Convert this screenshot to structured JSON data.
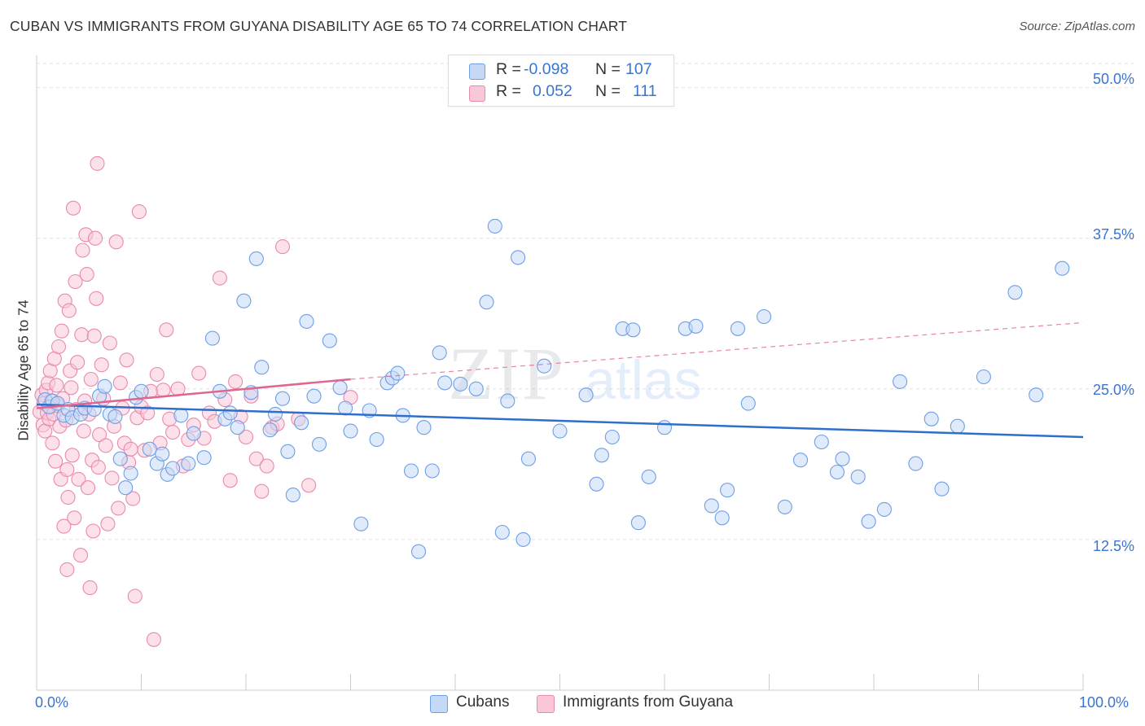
{
  "title": "CUBAN VS IMMIGRANTS FROM GUYANA DISABILITY AGE 65 TO 74 CORRELATION CHART",
  "source": "Source: ZipAtlas.com",
  "watermark": {
    "zip": "ZIP",
    "atlas": "atlas"
  },
  "legend": {
    "r_label": "R =",
    "n_label": "N =",
    "series": [
      {
        "name": "Cubans",
        "r": "-0.098",
        "n": "107",
        "fill": "#c5d9f6",
        "stroke": "#6e9ee6"
      },
      {
        "name": "Immigrants from Guyana",
        "r": "0.052",
        "n": "111",
        "fill": "#f9c8d8",
        "stroke": "#e88aac"
      }
    ]
  },
  "chart_data": {
    "type": "scatter",
    "title": "CUBAN VS IMMIGRANTS FROM GUYANA DISABILITY AGE 65 TO 74 CORRELATION CHART",
    "xlabel": "",
    "ylabel": "Disability Age 65 to 74",
    "xlim": [
      0,
      100
    ],
    "ylim": [
      0,
      52
    ],
    "x_tick_labels": [
      "0.0%",
      "100.0%"
    ],
    "y_ticks": [
      12.5,
      25.0,
      37.5,
      50.0
    ],
    "y_tick_labels": [
      "12.5%",
      "25.0%",
      "37.5%",
      "50.0%"
    ],
    "grid": true,
    "series": [
      {
        "name": "Cubans",
        "color": "#6e9ee6",
        "fill": "#c5d9f6",
        "trend": {
          "x": [
            0,
            100
          ],
          "y": [
            23.7,
            21.0
          ],
          "color": "#2f6fcc",
          "dashed_extension": false
        },
        "points": [
          [
            0.8,
            24.1
          ],
          [
            1.2,
            23.5
          ],
          [
            1.5,
            24.0
          ],
          [
            2.0,
            23.8
          ],
          [
            2.6,
            22.8
          ],
          [
            3.0,
            23.3
          ],
          [
            3.4,
            22.6
          ],
          [
            4.2,
            22.9
          ],
          [
            4.6,
            23.4
          ],
          [
            5.5,
            23.3
          ],
          [
            6.0,
            24.4
          ],
          [
            6.5,
            25.2
          ],
          [
            7.0,
            22.9
          ],
          [
            7.5,
            22.7
          ],
          [
            8.0,
            19.2
          ],
          [
            8.5,
            16.8
          ],
          [
            9.0,
            18.0
          ],
          [
            9.5,
            24.3
          ],
          [
            10.0,
            24.8
          ],
          [
            10.8,
            20.0
          ],
          [
            11.5,
            18.8
          ],
          [
            12.0,
            19.6
          ],
          [
            12.5,
            17.9
          ],
          [
            13.0,
            18.4
          ],
          [
            13.8,
            22.8
          ],
          [
            14.5,
            18.8
          ],
          [
            15.0,
            21.3
          ],
          [
            16.0,
            19.3
          ],
          [
            16.8,
            29.2
          ],
          [
            17.5,
            24.8
          ],
          [
            18.0,
            22.5
          ],
          [
            18.5,
            23.0
          ],
          [
            19.2,
            21.8
          ],
          [
            19.8,
            32.3
          ],
          [
            20.5,
            24.7
          ],
          [
            21.0,
            35.8
          ],
          [
            21.5,
            26.8
          ],
          [
            22.3,
            21.6
          ],
          [
            22.8,
            22.9
          ],
          [
            23.5,
            24.2
          ],
          [
            24.0,
            19.8
          ],
          [
            24.5,
            16.2
          ],
          [
            25.3,
            22.2
          ],
          [
            25.8,
            30.6
          ],
          [
            26.5,
            24.4
          ],
          [
            27.0,
            20.4
          ],
          [
            28.0,
            29.0
          ],
          [
            29.0,
            25.1
          ],
          [
            29.5,
            23.4
          ],
          [
            30.0,
            21.5
          ],
          [
            31.0,
            13.8
          ],
          [
            31.8,
            23.2
          ],
          [
            32.5,
            20.8
          ],
          [
            33.5,
            25.5
          ],
          [
            34.0,
            25.9
          ],
          [
            34.5,
            26.3
          ],
          [
            35.0,
            22.8
          ],
          [
            35.8,
            18.2
          ],
          [
            36.5,
            11.5
          ],
          [
            37.0,
            21.8
          ],
          [
            37.8,
            18.2
          ],
          [
            38.5,
            28.0
          ],
          [
            39.0,
            25.5
          ],
          [
            40.5,
            25.4
          ],
          [
            42.0,
            25.0
          ],
          [
            43.0,
            32.2
          ],
          [
            43.8,
            38.5
          ],
          [
            44.5,
            13.1
          ],
          [
            45.0,
            24.0
          ],
          [
            46.0,
            35.9
          ],
          [
            46.5,
            12.5
          ],
          [
            47.0,
            19.2
          ],
          [
            48.5,
            26.9
          ],
          [
            50.0,
            21.5
          ],
          [
            52.5,
            24.5
          ],
          [
            53.5,
            17.1
          ],
          [
            54.0,
            19.5
          ],
          [
            55.0,
            21.0
          ],
          [
            56.0,
            30.0
          ],
          [
            57.0,
            29.9
          ],
          [
            57.5,
            13.9
          ],
          [
            58.5,
            17.7
          ],
          [
            60.0,
            21.8
          ],
          [
            62.0,
            30.0
          ],
          [
            63.0,
            30.2
          ],
          [
            64.5,
            15.3
          ],
          [
            65.5,
            14.3
          ],
          [
            66.0,
            16.6
          ],
          [
            67.0,
            30.0
          ],
          [
            68.0,
            23.8
          ],
          [
            69.5,
            31.0
          ],
          [
            71.5,
            15.2
          ],
          [
            73.0,
            19.1
          ],
          [
            75.0,
            20.6
          ],
          [
            76.5,
            18.1
          ],
          [
            77.0,
            19.2
          ],
          [
            78.5,
            17.7
          ],
          [
            79.5,
            14.0
          ],
          [
            81.0,
            15.0
          ],
          [
            82.5,
            25.6
          ],
          [
            84.0,
            18.8
          ],
          [
            85.5,
            22.5
          ],
          [
            86.5,
            16.7
          ],
          [
            88.0,
            21.9
          ],
          [
            90.5,
            26.0
          ],
          [
            93.5,
            33.0
          ],
          [
            95.5,
            24.5
          ],
          [
            98.0,
            35.0
          ]
        ]
      },
      {
        "name": "Immigrants from Guyana",
        "color": "#e88aac",
        "fill": "#f9c8d8",
        "trend": {
          "x": [
            0,
            30
          ],
          "y": [
            23.4,
            25.8
          ],
          "color": "#e0668f",
          "dashed_extension": true,
          "dashed_to": [
            100,
            30.5
          ]
        },
        "points": [
          [
            0.3,
            23.1
          ],
          [
            0.5,
            24.5
          ],
          [
            0.6,
            22.0
          ],
          [
            0.7,
            23.8
          ],
          [
            0.8,
            21.5
          ],
          [
            0.9,
            24.9
          ],
          [
            1.0,
            23.0
          ],
          [
            1.1,
            25.5
          ],
          [
            1.2,
            22.5
          ],
          [
            1.3,
            26.5
          ],
          [
            1.4,
            24.0
          ],
          [
            1.5,
            20.5
          ],
          [
            1.6,
            22.9
          ],
          [
            1.7,
            27.5
          ],
          [
            1.8,
            19.0
          ],
          [
            1.9,
            25.3
          ],
          [
            2.0,
            23.6
          ],
          [
            2.1,
            28.5
          ],
          [
            2.2,
            21.9
          ],
          [
            2.3,
            17.5
          ],
          [
            2.4,
            29.8
          ],
          [
            2.5,
            24.2
          ],
          [
            2.6,
            13.6
          ],
          [
            2.7,
            32.3
          ],
          [
            2.8,
            22.4
          ],
          [
            2.9,
            18.3
          ],
          [
            3.0,
            16.0
          ],
          [
            3.1,
            31.5
          ],
          [
            3.2,
            26.5
          ],
          [
            3.3,
            25.1
          ],
          [
            3.4,
            19.5
          ],
          [
            3.5,
            40.0
          ],
          [
            3.6,
            14.3
          ],
          [
            3.7,
            33.9
          ],
          [
            3.8,
            23.3
          ],
          [
            3.9,
            27.2
          ],
          [
            4.0,
            17.5
          ],
          [
            4.2,
            11.2
          ],
          [
            4.3,
            29.5
          ],
          [
            4.4,
            36.5
          ],
          [
            4.5,
            21.5
          ],
          [
            4.6,
            24.0
          ],
          [
            4.7,
            37.8
          ],
          [
            4.8,
            34.5
          ],
          [
            4.9,
            16.8
          ],
          [
            5.0,
            22.9
          ],
          [
            5.1,
            8.5
          ],
          [
            5.2,
            25.8
          ],
          [
            5.3,
            19.1
          ],
          [
            5.4,
            13.2
          ],
          [
            5.5,
            29.4
          ],
          [
            5.6,
            37.5
          ],
          [
            5.7,
            32.5
          ],
          [
            5.8,
            43.7
          ],
          [
            5.9,
            18.5
          ],
          [
            6.0,
            21.2
          ],
          [
            6.2,
            27.0
          ],
          [
            6.4,
            24.2
          ],
          [
            6.6,
            20.3
          ],
          [
            6.8,
            13.8
          ],
          [
            7.0,
            28.8
          ],
          [
            7.2,
            17.6
          ],
          [
            7.4,
            21.9
          ],
          [
            7.6,
            37.2
          ],
          [
            7.8,
            15.1
          ],
          [
            8.0,
            25.5
          ],
          [
            8.2,
            23.4
          ],
          [
            8.4,
            20.5
          ],
          [
            8.6,
            27.4
          ],
          [
            8.8,
            18.9
          ],
          [
            9.0,
            20.0
          ],
          [
            9.2,
            15.9
          ],
          [
            9.4,
            7.8
          ],
          [
            9.6,
            22.6
          ],
          [
            9.8,
            39.7
          ],
          [
            10.0,
            23.5
          ],
          [
            10.3,
            19.9
          ],
          [
            10.6,
            23.0
          ],
          [
            10.9,
            24.8
          ],
          [
            11.2,
            4.2
          ],
          [
            11.5,
            26.2
          ],
          [
            11.8,
            20.5
          ],
          [
            12.1,
            24.9
          ],
          [
            12.4,
            29.9
          ],
          [
            12.7,
            22.5
          ],
          [
            13.0,
            21.4
          ],
          [
            13.5,
            25.0
          ],
          [
            14.0,
            18.6
          ],
          [
            14.5,
            20.8
          ],
          [
            15.0,
            22.0
          ],
          [
            15.5,
            26.3
          ],
          [
            16.0,
            20.9
          ],
          [
            16.5,
            23.0
          ],
          [
            17.0,
            22.3
          ],
          [
            17.5,
            34.2
          ],
          [
            18.0,
            24.1
          ],
          [
            18.5,
            17.4
          ],
          [
            19.0,
            25.6
          ],
          [
            19.5,
            22.7
          ],
          [
            20.0,
            21.0
          ],
          [
            20.5,
            24.4
          ],
          [
            21.0,
            19.2
          ],
          [
            21.5,
            16.5
          ],
          [
            22.0,
            18.6
          ],
          [
            22.5,
            21.8
          ],
          [
            23.0,
            22.1
          ],
          [
            23.5,
            36.8
          ],
          [
            25.0,
            22.5
          ],
          [
            26.0,
            17.0
          ],
          [
            30.0,
            24.3
          ],
          [
            2.9,
            10.0
          ]
        ]
      }
    ]
  },
  "axes": {
    "y_label": "Disability Age 65 to 74",
    "x_min_label": "0.0%",
    "x_max_label": "100.0%",
    "y_tick_labels": [
      "12.5%",
      "25.0%",
      "37.5%",
      "50.0%"
    ]
  }
}
